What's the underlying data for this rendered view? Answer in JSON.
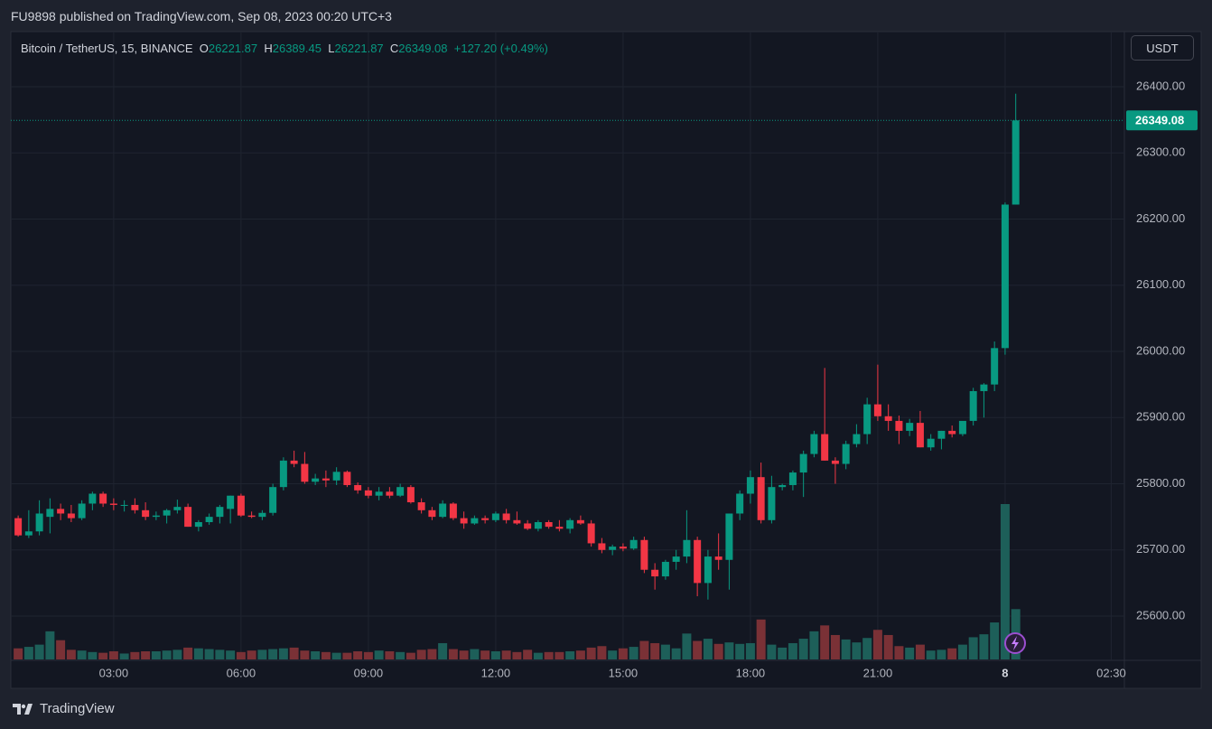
{
  "header": {
    "text": "FU9898 published on TradingView.com, Sep 08, 2023 00:20 UTC+3"
  },
  "footer": {
    "brand": "TradingView"
  },
  "chart_data": {
    "type": "candlestick",
    "symbol": "Bitcoin / TetherUS, 15, BINANCE",
    "ohlc_letters": [
      "O",
      "H",
      "L",
      "C"
    ],
    "change": "+127.20 (+0.49%)",
    "currency": "USDT",
    "up_color": "#089981",
    "down_color": "#f23645",
    "volume_up_color": "#1d5f59",
    "volume_down_color": "#7a3136",
    "grid": true,
    "xlim": [
      0.62,
      26.81
    ],
    "xticks": [
      {
        "value": 3,
        "label": "03:00"
      },
      {
        "value": 6,
        "label": "06:00"
      },
      {
        "value": 9,
        "label": "09:00"
      },
      {
        "value": 12,
        "label": "12:00"
      },
      {
        "value": 15,
        "label": "15:00"
      },
      {
        "value": 18,
        "label": "18:00"
      },
      {
        "value": 21,
        "label": "21:00"
      },
      {
        "value": 24,
        "label": "8"
      },
      {
        "value": 26.5,
        "label": "02:30"
      }
    ],
    "ylim": [
      25534.5,
      26481.9
    ],
    "yticks": [
      {
        "value": 25600,
        "label": "25600.00"
      },
      {
        "value": 25700,
        "label": "25700.00"
      },
      {
        "value": 25800,
        "label": "25800.00"
      },
      {
        "value": 25900,
        "label": "25900.00"
      },
      {
        "value": 26000,
        "label": "26000.00"
      },
      {
        "value": 26100,
        "label": "26100.00"
      },
      {
        "value": 26200,
        "label": "26200.00"
      },
      {
        "value": 26300,
        "label": "26300.00"
      },
      {
        "value": 26400,
        "label": "26400.00"
      }
    ],
    "x": [
      0.75,
      1,
      1.25,
      1.5,
      1.75,
      2,
      2.25,
      2.5,
      2.75,
      3,
      3.25,
      3.5,
      3.75,
      4,
      4.25,
      4.5,
      4.75,
      5,
      5.25,
      5.5,
      5.75,
      6,
      6.25,
      6.5,
      6.75,
      7,
      7.25,
      7.5,
      7.75,
      8,
      8.25,
      8.5,
      8.75,
      9,
      9.25,
      9.5,
      9.75,
      10,
      10.25,
      10.5,
      10.75,
      11,
      11.25,
      11.5,
      11.75,
      12,
      12.25,
      12.5,
      12.75,
      13,
      13.25,
      13.5,
      13.75,
      14,
      14.25,
      14.5,
      14.75,
      15,
      15.25,
      15.5,
      15.75,
      16,
      16.25,
      16.5,
      16.75,
      17,
      17.25,
      17.5,
      17.75,
      18,
      18.25,
      18.5,
      18.75,
      19,
      19.25,
      19.5,
      19.75,
      20,
      20.25,
      20.5,
      20.75,
      21,
      21.25,
      21.5,
      21.75,
      22,
      22.25,
      22.5,
      22.75,
      23,
      23.25,
      23.5,
      23.75,
      24,
      24.25
    ],
    "open": [
      25748,
      25722,
      25728,
      25750,
      25762,
      25755,
      25748,
      25770,
      25785,
      25770,
      25768,
      25768,
      25760,
      25750,
      25752,
      25760,
      25765,
      25735,
      25742,
      25750,
      25762,
      25782,
      25752,
      25750,
      25756,
      25795,
      25835,
      25830,
      25803,
      25808,
      25805,
      25818,
      25798,
      25790,
      25782,
      25788,
      25782,
      25795,
      25772,
      25760,
      25750,
      25770,
      25748,
      25740,
      25748,
      25745,
      25755,
      25745,
      25740,
      25732,
      25742,
      25735,
      25732,
      25745,
      25740,
      25710,
      25700,
      25705,
      25702,
      25715,
      25670,
      25660,
      25682,
      25690,
      25715,
      25650,
      25690,
      25685,
      25755,
      25785,
      25810,
      25745,
      25795,
      25798,
      25817,
      25845,
      25875,
      25835,
      25830,
      25860,
      25875,
      25920,
      25902,
      25895,
      25880,
      25892,
      25855,
      25868,
      25880,
      25875,
      25895,
      25940,
      25950,
      26005,
      26221.87
    ],
    "high": [
      25752,
      25760,
      25775,
      25778,
      25770,
      25768,
      25775,
      25788,
      25788,
      25778,
      25775,
      25778,
      25772,
      25758,
      25762,
      25776,
      25770,
      25745,
      25755,
      25768,
      25782,
      25785,
      25758,
      25760,
      25800,
      25840,
      25850,
      25848,
      25815,
      25820,
      25825,
      25820,
      25802,
      25795,
      25795,
      25795,
      25800,
      25798,
      25778,
      25765,
      25775,
      25772,
      25758,
      25752,
      25752,
      25758,
      25762,
      25758,
      25745,
      25745,
      25745,
      25745,
      25748,
      25752,
      25745,
      25718,
      25708,
      25710,
      25720,
      25720,
      25680,
      25685,
      25700,
      25760,
      25720,
      25700,
      25725,
      25755,
      25790,
      25820,
      25832,
      25812,
      25800,
      25820,
      25850,
      25880,
      25975,
      25840,
      25865,
      25890,
      25930,
      25980,
      25920,
      25903,
      25898,
      25910,
      25875,
      25880,
      25888,
      25892,
      25945,
      25952,
      26015,
      26225,
      26389.45
    ],
    "low": [
      25720,
      25718,
      25722,
      25725,
      25745,
      25742,
      25745,
      25760,
      25765,
      25760,
      25758,
      25755,
      25745,
      25745,
      25740,
      25755,
      25735,
      25728,
      25738,
      25740,
      25740,
      25750,
      25748,
      25745,
      25752,
      25790,
      25825,
      25800,
      25798,
      25795,
      25798,
      25795,
      25785,
      25778,
      25775,
      25778,
      25780,
      25770,
      25755,
      25745,
      25748,
      25745,
      25732,
      25738,
      25740,
      25742,
      25740,
      25738,
      25730,
      25728,
      25732,
      25728,
      25725,
      25738,
      25705,
      25695,
      25692,
      25698,
      25700,
      25665,
      25640,
      25655,
      25670,
      25680,
      25630,
      25625,
      25670,
      25640,
      25745,
      25770,
      25740,
      25740,
      25790,
      25790,
      25780,
      25840,
      25835,
      25800,
      25822,
      25855,
      25860,
      25895,
      25880,
      25860,
      25872,
      25855,
      25850,
      25852,
      25870,
      25872,
      25888,
      25900,
      25940,
      25995,
      26221.87
    ],
    "close": [
      25722,
      25728,
      25755,
      25762,
      25755,
      25748,
      25770,
      25785,
      25770,
      25768,
      25768,
      25760,
      25750,
      25752,
      25760,
      25765,
      25735,
      25742,
      25750,
      25765,
      25782,
      25752,
      25750,
      25756,
      25795,
      25835,
      25830,
      25803,
      25808,
      25805,
      25818,
      25798,
      25790,
      25782,
      25788,
      25782,
      25795,
      25772,
      25760,
      25750,
      25770,
      25748,
      25740,
      25748,
      25745,
      25755,
      25745,
      25740,
      25732,
      25742,
      25735,
      25732,
      25745,
      25740,
      25710,
      25700,
      25705,
      25702,
      25715,
      25670,
      25660,
      25682,
      25690,
      25715,
      25650,
      25690,
      25685,
      25755,
      25785,
      25810,
      25745,
      25795,
      25798,
      25817,
      25845,
      25875,
      25835,
      25830,
      25860,
      25875,
      25920,
      25902,
      25895,
      25880,
      25892,
      25855,
      25868,
      25880,
      25875,
      25895,
      25940,
      25950,
      26005,
      26221.87,
      26349.08
    ],
    "volume": [
      150,
      170,
      200,
      380,
      260,
      130,
      120,
      100,
      90,
      110,
      80,
      100,
      110,
      110,
      120,
      130,
      160,
      150,
      140,
      130,
      120,
      100,
      120,
      130,
      140,
      150,
      160,
      120,
      110,
      100,
      90,
      90,
      110,
      100,
      120,
      110,
      100,
      90,
      130,
      140,
      220,
      140,
      120,
      140,
      120,
      110,
      120,
      100,
      130,
      90,
      100,
      100,
      110,
      120,
      160,
      180,
      120,
      150,
      170,
      250,
      220,
      200,
      150,
      350,
      250,
      280,
      210,
      230,
      210,
      220,
      540,
      200,
      160,
      220,
      280,
      380,
      460,
      330,
      270,
      230,
      290,
      400,
      330,
      180,
      160,
      200,
      120,
      130,
      150,
      200,
      300,
      340,
      500,
      2100,
      680
    ]
  }
}
